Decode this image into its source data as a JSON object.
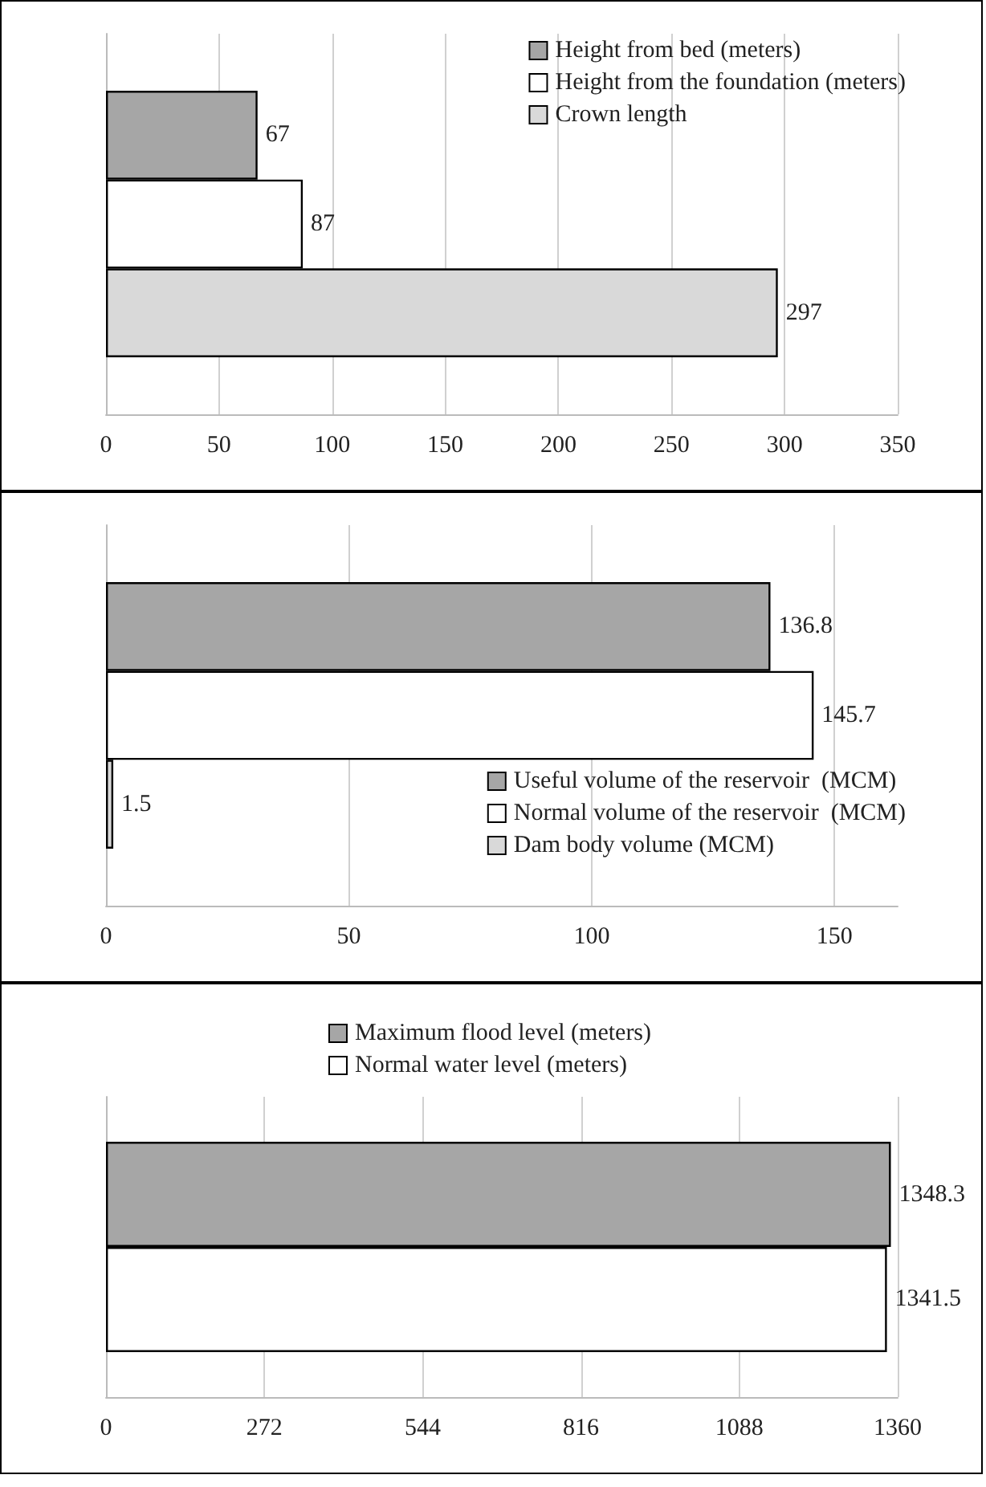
{
  "chart_data": [
    {
      "type": "bar",
      "orientation": "horizontal",
      "categories": [
        null
      ],
      "xlim": [
        0,
        350
      ],
      "xticks": [
        0,
        50,
        100,
        150,
        200,
        250,
        300,
        350
      ],
      "grid": "x",
      "legend": "top right",
      "data_labels": true,
      "series": [
        {
          "name": "Height from bed (meters)",
          "color": "#a6a6a6",
          "values": [
            67
          ]
        },
        {
          "name": "Height from the foundation (meters)",
          "color": "#ffffff",
          "values": [
            87
          ]
        },
        {
          "name": "Crown length",
          "color": "#d9d9d9",
          "values": [
            297
          ]
        }
      ]
    },
    {
      "type": "bar",
      "orientation": "horizontal",
      "categories": [
        null
      ],
      "xlim": [
        0,
        163
      ],
      "xticks": [
        0,
        50,
        100,
        150
      ],
      "grid": "x",
      "legend": "bottom right",
      "data_labels": true,
      "series": [
        {
          "name": "Useful volume of the reservoir  (MCM)",
          "color": "#a6a6a6",
          "values": [
            136.8
          ]
        },
        {
          "name": "Normal volume of the reservoir  (MCM)",
          "color": "#ffffff",
          "values": [
            145.7
          ]
        },
        {
          "name": "Dam body volume (MCM)",
          "color": "#d9d9d9",
          "values": [
            1.5
          ]
        }
      ]
    },
    {
      "type": "bar",
      "orientation": "horizontal",
      "categories": [
        null
      ],
      "xlim": [
        0,
        1360
      ],
      "xticks": [
        0,
        272,
        544,
        816,
        1088,
        1360
      ],
      "grid": "x",
      "legend": "top",
      "data_labels": true,
      "series": [
        {
          "name": "Maximum flood level (meters)",
          "color": "#a6a6a6",
          "values": [
            1348.3
          ]
        },
        {
          "name": "Normal water level (meters)",
          "color": "#ffffff",
          "values": [
            1341.5
          ]
        }
      ]
    }
  ]
}
